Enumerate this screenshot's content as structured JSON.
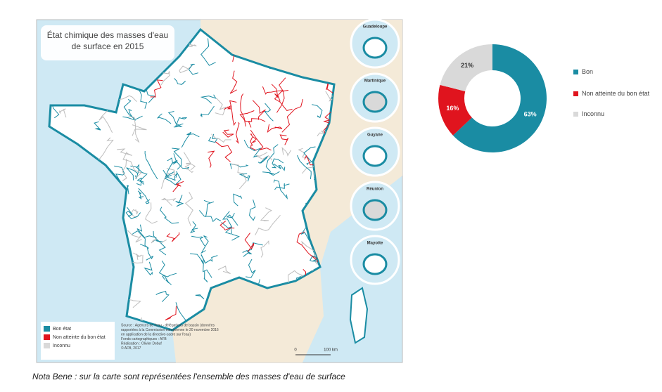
{
  "map": {
    "title_lines": [
      "État chimique des masses d'eau",
      "de surface en 2015"
    ],
    "insets": [
      "Guadeloupe",
      "Martinique",
      "Guyane",
      "Réunion",
      "Mayotte"
    ],
    "legend": [
      "Bon état",
      "Non atteinte du bon état",
      "Inconnu"
    ],
    "source_lines": [
      "Source : Agences de l'eau - délégations de bassin (données",
      "rapportées à la Commission européenne le 20 novembre 2016",
      "en application de la directive-cadre sur l'eau)",
      "Fonds cartographiques : AFB",
      "Réalisation : Olivier Debuf",
      "© AFB, 2017"
    ],
    "scale": [
      "0",
      "100 km"
    ]
  },
  "chart_data": {
    "type": "pie",
    "categories": [
      "Bon",
      "Non atteinte du bon état",
      "Inconnu"
    ],
    "values": [
      63,
      16,
      21
    ],
    "value_labels": [
      "63%",
      "16%",
      "21%"
    ],
    "colors": [
      "#1a8ca3",
      "#e0141e",
      "#d9d9d9"
    ],
    "legend": "right"
  },
  "note": "Nota Bene : sur la carte sont représentées l'ensemble des masses d'eau de surface"
}
